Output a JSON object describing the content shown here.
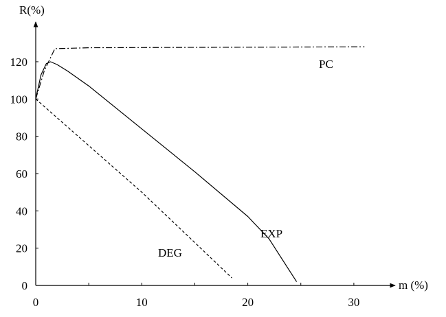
{
  "chart_data": {
    "type": "line",
    "title": "",
    "xlabel": "m (%)",
    "ylabel": "R(%)",
    "xlim": [
      0,
      34
    ],
    "ylim": [
      0,
      138
    ],
    "x_ticks": [
      0,
      10,
      20,
      30
    ],
    "y_ticks": [
      0,
      20,
      40,
      60,
      80,
      100,
      120
    ],
    "grid": false,
    "series": [
      {
        "name": "PC",
        "line_style": "dash-dot",
        "x": [
          0,
          0.8,
          1.8,
          5,
          10,
          20,
          31
        ],
        "y": [
          100,
          115,
          127,
          127.5,
          127.6,
          127.8,
          128
        ]
      },
      {
        "name": "EXP",
        "line_style": "solid",
        "x": [
          0,
          0.5,
          1.0,
          1.4,
          2,
          3,
          5,
          10,
          15,
          20,
          22,
          24.6
        ],
        "y": [
          100,
          113,
          119,
          120,
          118.5,
          115,
          107,
          84,
          61,
          37,
          25,
          2
        ]
      },
      {
        "name": "DEG",
        "line_style": "dashed",
        "x": [
          0,
          5,
          10,
          15,
          18.5
        ],
        "y": [
          100,
          75,
          50,
          23,
          4
        ]
      }
    ]
  }
}
